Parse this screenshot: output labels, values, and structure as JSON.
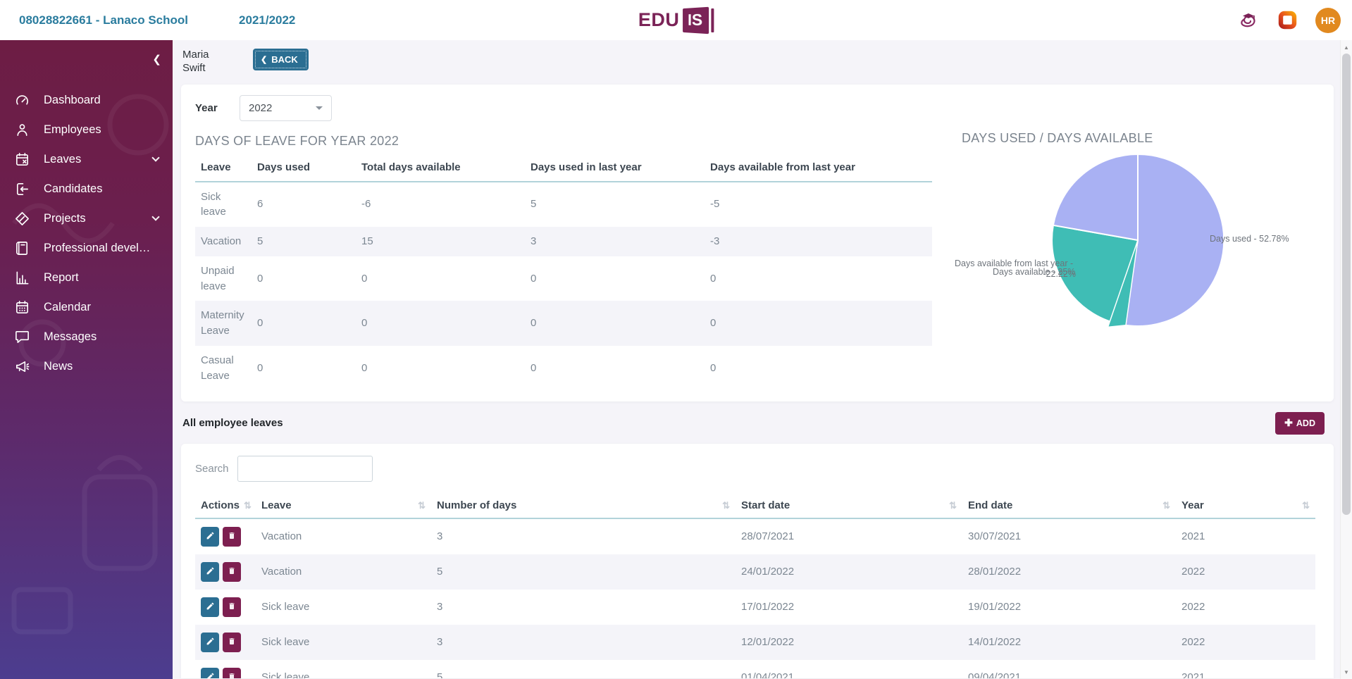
{
  "colors": {
    "accent_maroon": "#7d1f50",
    "accent_teal": "#2b6e92",
    "avatar_orange": "#e1891f",
    "pie_purple": "#a9b1f3",
    "pie_teal": "#3fbdb5",
    "row_stripe": "#f4f4f9"
  },
  "header": {
    "school_link": "08028822661 - Lanaco School",
    "school_year": "2021/2022",
    "logo_text": "EDU",
    "logo_badge": "IS",
    "avatar_initials": "HR"
  },
  "sidebar": {
    "items": [
      {
        "label": "Dashboard",
        "icon": "gauge",
        "expandable": false
      },
      {
        "label": "Employees",
        "icon": "person",
        "expandable": false
      },
      {
        "label": "Leaves",
        "icon": "calendar-x",
        "expandable": true
      },
      {
        "label": "Candidates",
        "icon": "import",
        "expandable": false
      },
      {
        "label": "Projects",
        "icon": "diamond-pen",
        "expandable": true
      },
      {
        "label": "Professional develop...",
        "icon": "book",
        "expandable": false
      },
      {
        "label": "Report",
        "icon": "bar-chart",
        "expandable": false
      },
      {
        "label": "Calendar",
        "icon": "calendar",
        "expandable": false
      },
      {
        "label": "Messages",
        "icon": "chat",
        "expandable": false
      },
      {
        "label": "News",
        "icon": "megaphone",
        "expandable": false
      }
    ]
  },
  "page": {
    "employee_name": "Maria Swift",
    "back_label": "BACK",
    "year_label": "Year",
    "year_value": "2022",
    "summary": {
      "title": "DAYS OF LEAVE FOR YEAR 2022",
      "columns": [
        "Leave",
        "Days used",
        "Total days available",
        "Days used in last year",
        "Days available from last year"
      ],
      "rows": [
        [
          "Sick leave",
          "6",
          "-6",
          "5",
          "-5"
        ],
        [
          "Vacation",
          "5",
          "15",
          "3",
          "-3"
        ],
        [
          "Unpaid leave",
          "0",
          "0",
          "0",
          "0"
        ],
        [
          "Maternity Leave",
          "0",
          "0",
          "0",
          "0"
        ],
        [
          "Casual Leave",
          "0",
          "0",
          "0",
          "0"
        ]
      ]
    },
    "all_leaves": {
      "title": "All employee leaves",
      "add_label": "ADD",
      "search_label": "Search",
      "search_value": "",
      "columns": [
        "Actions",
        "Leave",
        "Number of days",
        "Start date",
        "End date",
        "Year"
      ],
      "rows": [
        [
          "Vacation",
          "3",
          "28/07/2021",
          "30/07/2021",
          "2021"
        ],
        [
          "Vacation",
          "5",
          "24/01/2022",
          "28/01/2022",
          "2022"
        ],
        [
          "Sick leave",
          "3",
          "17/01/2022",
          "19/01/2022",
          "2022"
        ],
        [
          "Sick leave",
          "3",
          "12/01/2022",
          "14/01/2022",
          "2022"
        ],
        [
          "Sick leave",
          "5",
          "01/04/2021",
          "09/04/2021",
          "2021"
        ]
      ]
    }
  },
  "chart_data": {
    "type": "pie",
    "title": "DAYS USED / DAYS AVAILABLE",
    "legend_position": "none",
    "slices": [
      {
        "label": "Days used",
        "value": 52.78,
        "display": "Days used - 52.78%",
        "color": "#a9b1f3"
      },
      {
        "label": "Days available",
        "value": 25,
        "display": "Days available - 25%",
        "color": "#3fbdb5"
      },
      {
        "label": "Days available from last year",
        "value": -22.22,
        "display": "Days available from last year - -22.22%",
        "display_line1": "Days available from last year -",
        "display_line2": "-22.22%",
        "color": "#a9b1f3"
      }
    ]
  }
}
